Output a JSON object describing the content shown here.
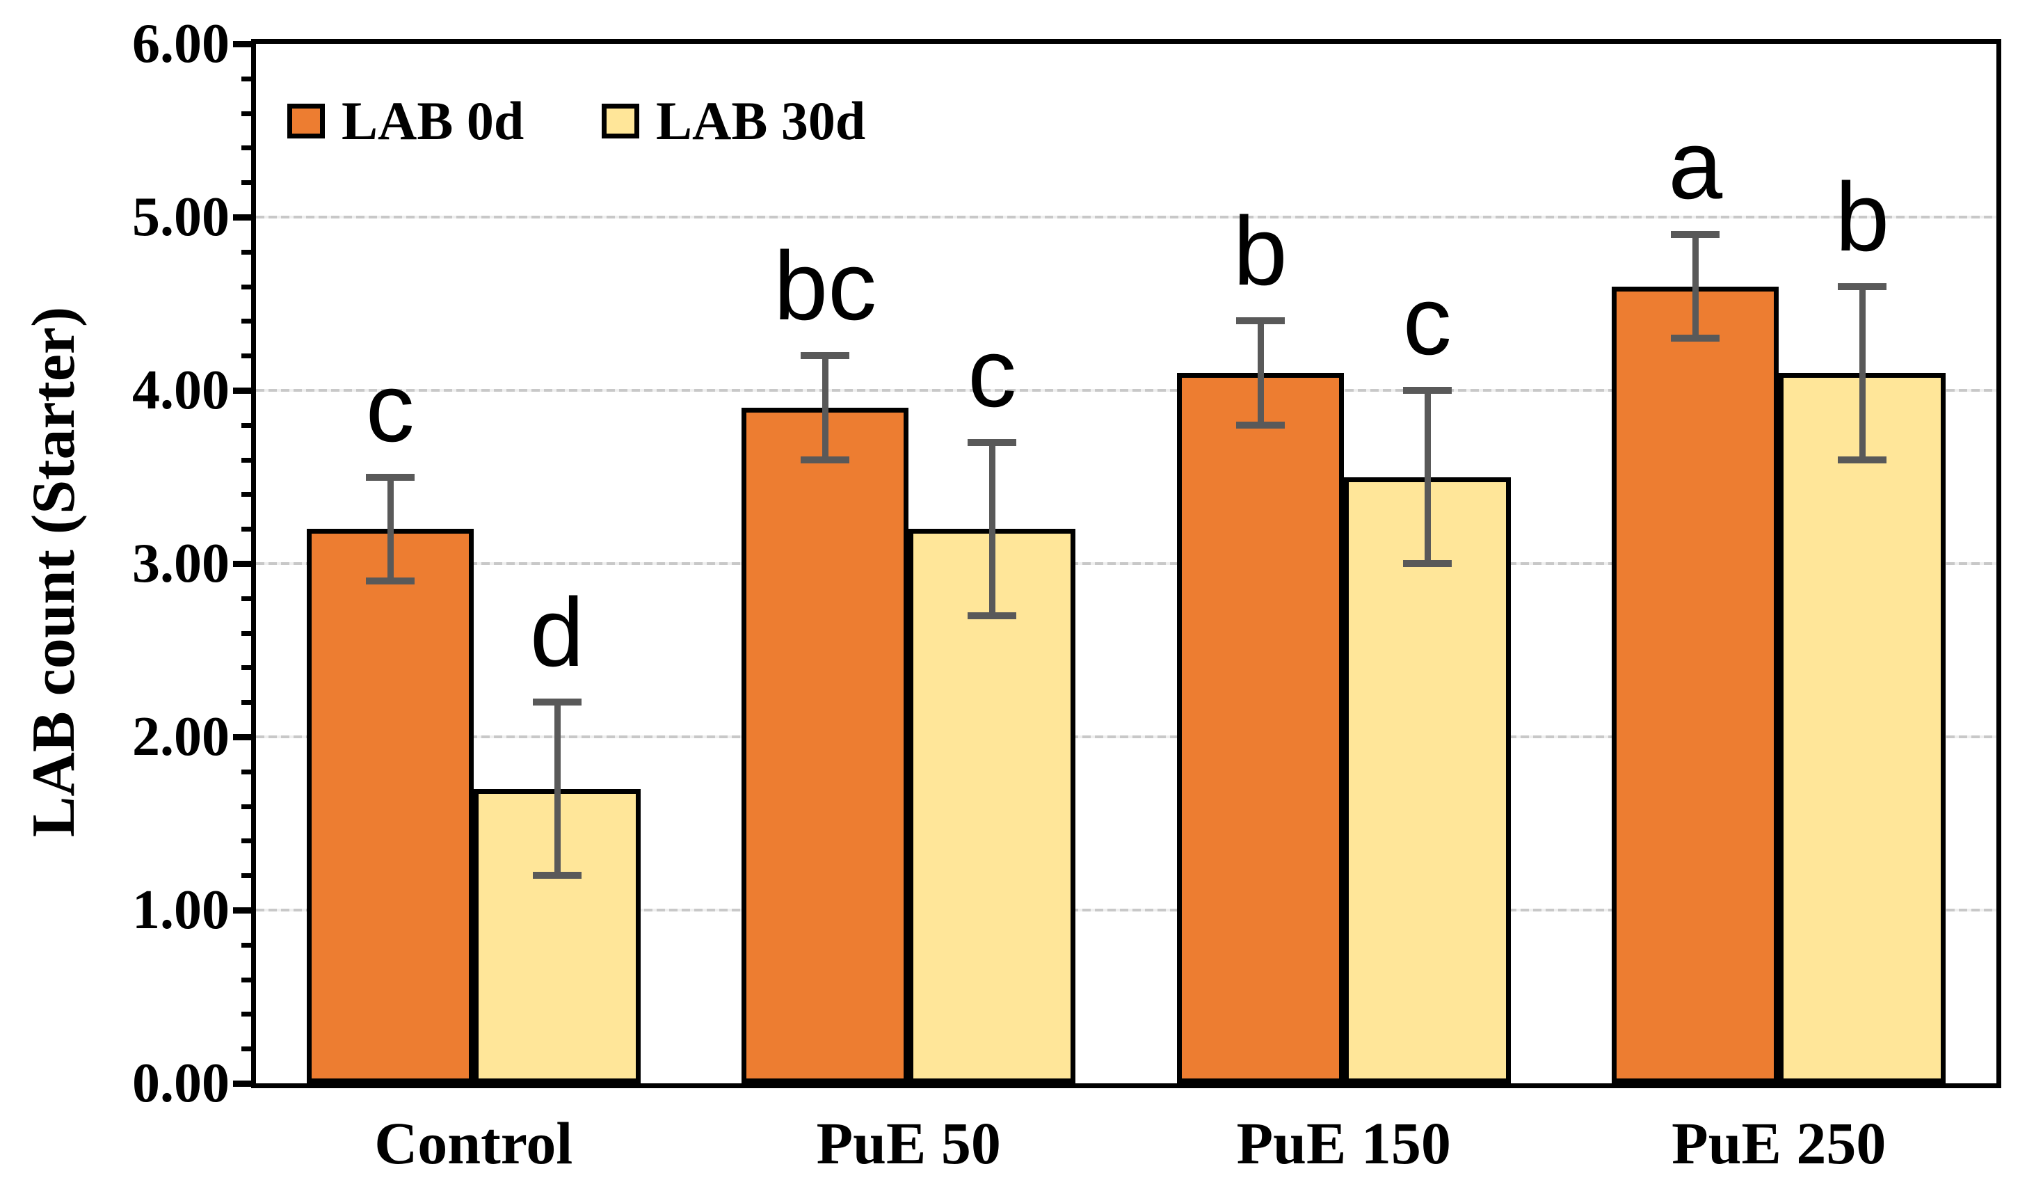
{
  "figure": {
    "background": "#FFFFFF"
  },
  "y_axis": {
    "title": "LAB count (Starter)",
    "tick_labels": [
      "0.00",
      "1.00",
      "2.00",
      "3.00",
      "4.00",
      "5.00",
      "6.00"
    ],
    "min": 0,
    "max": 6,
    "major_step": 1,
    "minor_step": 0.2
  },
  "x_axis": {
    "categories": [
      "Control",
      "PuE 50",
      "PuE 150",
      "PuE 250"
    ]
  },
  "legend": {
    "position": "top-left-inside",
    "items": [
      {
        "label": "LAB 0d",
        "color": "#ED7D31"
      },
      {
        "label": "LAB 30d",
        "color": "#FFE699"
      }
    ]
  },
  "chart_data": {
    "type": "bar",
    "title": "",
    "xlabel": "",
    "ylabel": "LAB count (Starter)",
    "ylim": [
      0,
      6
    ],
    "grid": "horizontal-major-dotted",
    "legend_position": "top-left-inside",
    "categories": [
      "Control",
      "PuE 50",
      "PuE 150",
      "PuE 250"
    ],
    "series": [
      {
        "name": "LAB 0d",
        "color": "#ED7D31",
        "values": [
          3.2,
          3.9,
          4.1,
          4.6
        ],
        "error": [
          0.3,
          0.3,
          0.3,
          0.3
        ],
        "sig_letters": [
          "c",
          "bc",
          "b",
          "a"
        ]
      },
      {
        "name": "LAB 30d",
        "color": "#FFE699",
        "values": [
          1.7,
          3.2,
          3.5,
          4.1
        ],
        "error": [
          0.5,
          0.5,
          0.5,
          0.5
        ],
        "sig_letters": [
          "d",
          "c",
          "c",
          "b"
        ]
      }
    ],
    "colors": {
      "bar_border": "#000000",
      "error_bar": "#595959",
      "gridline": "#D9D9D9",
      "axis": "#000000",
      "text": "#000000"
    }
  }
}
